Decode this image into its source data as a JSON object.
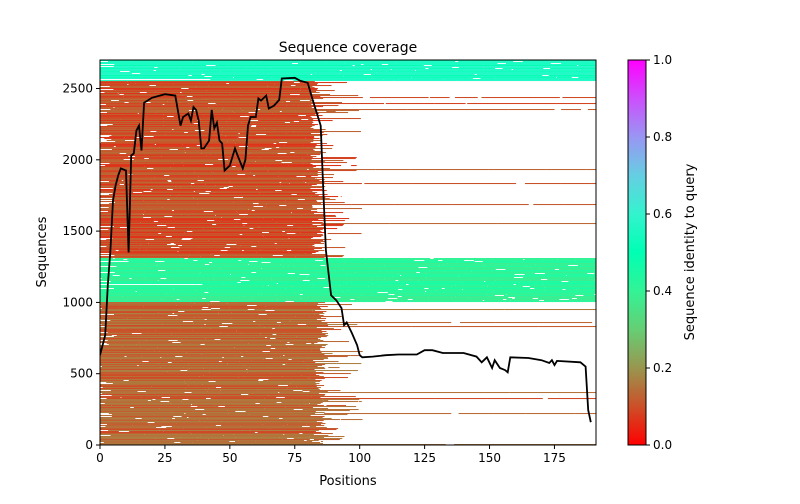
{
  "chart_data": {
    "type": "heatmap",
    "title": "Sequence coverage",
    "xlabel": "Positions",
    "ylabel": "Sequences",
    "xlim": [
      0,
      191
    ],
    "ylim": [
      0,
      2700
    ],
    "xticks": [
      "0",
      "25",
      "50",
      "75",
      "100",
      "125",
      "150",
      "175"
    ],
    "xtick_values": [
      0,
      25,
      50,
      75,
      100,
      125,
      150,
      175
    ],
    "yticks": [
      "0",
      "500",
      "1000",
      "1500",
      "2000",
      "2500"
    ],
    "ytick_values": [
      0,
      500,
      1000,
      1500,
      2000,
      2500
    ],
    "grid": false,
    "colormap": "rainbow_r",
    "colorbar": {
      "label": "Sequence identity to query",
      "range": [
        0,
        1
      ],
      "ticks": [
        "0.0",
        "0.2",
        "0.4",
        "0.6",
        "0.8",
        "1.0"
      ],
      "tick_values": [
        0,
        0.2,
        0.4,
        0.6,
        0.8,
        1.0
      ]
    },
    "blocks": [
      {
        "from": 0,
        "to": 1000,
        "identity": 0.13,
        "end_position": 88
      },
      {
        "from": 1000,
        "to": 1310,
        "identity": 0.42,
        "end_position": 191
      },
      {
        "from": 1310,
        "to": 1314,
        "identity": 1.0,
        "end_position": 191
      },
      {
        "from": 1314,
        "to": 2550,
        "identity": 0.1,
        "end_position": 87
      },
      {
        "from": 2550,
        "to": 2700,
        "identity": 0.55,
        "end_position": 191
      }
    ],
    "coverage_line": {
      "color": "#000000",
      "x": [
        0,
        1,
        2,
        3,
        4,
        5,
        6,
        7,
        8,
        10,
        11,
        12,
        13,
        14,
        15,
        16,
        17,
        20,
        25,
        29,
        31,
        32,
        34,
        35,
        36,
        37,
        38,
        39,
        40,
        42,
        43,
        44,
        45,
        46,
        47,
        48,
        50,
        52,
        53,
        55,
        56,
        57,
        58,
        60,
        61,
        62,
        64,
        65,
        67,
        69,
        70,
        75,
        77,
        80,
        82,
        85,
        86,
        87,
        89,
        91,
        93,
        94,
        95,
        97,
        99,
        100,
        101,
        105,
        110,
        115,
        122,
        125,
        128,
        132,
        140,
        145,
        147,
        149,
        151,
        152,
        154,
        156,
        157,
        158,
        165,
        170,
        173,
        174,
        175,
        176,
        185,
        187,
        188,
        189
      ],
      "y": [
        630,
        700,
        770,
        1120,
        1365,
        1715,
        1820,
        1890,
        1940,
        1925,
        1350,
        2030,
        2045,
        2205,
        2240,
        2065,
        2400,
        2435,
        2460,
        2450,
        2240,
        2300,
        2325,
        2275,
        2370,
        2350,
        2275,
        2080,
        2080,
        2135,
        2350,
        2220,
        2260,
        2135,
        2115,
        1925,
        1960,
        2080,
        2030,
        1940,
        2000,
        2240,
        2300,
        2300,
        2430,
        2415,
        2450,
        2360,
        2380,
        2420,
        2570,
        2575,
        2555,
        2540,
        2415,
        2240,
        1785,
        1365,
        1050,
        1015,
        960,
        840,
        860,
        785,
        700,
        630,
        615,
        620,
        630,
        635,
        635,
        665,
        665,
        645,
        645,
        620,
        580,
        615,
        540,
        595,
        540,
        525,
        510,
        615,
        610,
        595,
        575,
        595,
        560,
        590,
        580,
        550,
        245,
        160
      ]
    }
  }
}
